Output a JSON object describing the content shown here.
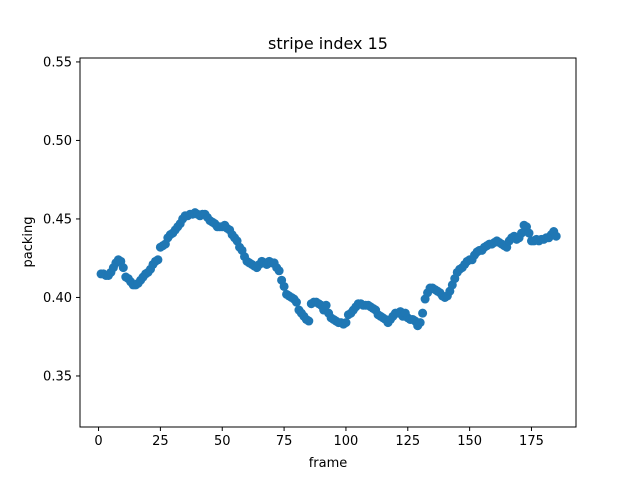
{
  "chart_data": {
    "type": "scatter",
    "title": "stripe index 15",
    "xlabel": "frame",
    "ylabel": "packing",
    "xlim": [
      -7.5,
      193
    ],
    "ylim": [
      0.3175,
      0.5525
    ],
    "xticks": [
      0,
      25,
      50,
      75,
      100,
      125,
      150,
      175
    ],
    "xtick_labels": [
      "0",
      "25",
      "50",
      "75",
      "100",
      "125",
      "150",
      "175"
    ],
    "yticks": [
      0.35,
      0.4,
      0.45,
      0.5,
      0.55
    ],
    "ytick_labels": [
      "0.35",
      "0.40",
      "0.45",
      "0.50",
      "0.55"
    ],
    "grid": false,
    "marker_color": "#1f77b4",
    "series": [
      {
        "x": [
          1,
          2,
          3,
          4,
          5,
          6,
          7,
          8,
          9,
          10,
          11,
          12,
          13,
          14,
          15,
          16,
          17,
          18,
          19,
          20,
          21,
          22,
          23,
          24,
          25,
          26,
          27,
          28,
          29,
          30,
          31,
          32,
          33,
          34,
          35,
          36,
          37,
          38,
          39,
          40,
          41,
          42,
          43,
          44,
          45,
          46,
          47,
          48,
          49,
          50,
          51,
          52,
          53,
          54,
          55,
          56,
          57,
          58,
          59,
          60,
          61,
          62,
          63,
          64,
          65,
          66,
          67,
          68,
          69,
          70,
          71,
          72,
          73,
          74,
          75,
          76,
          77,
          78,
          79,
          80,
          81,
          82,
          83,
          84,
          85,
          86,
          87,
          88,
          89,
          90,
          91,
          92,
          93,
          94,
          95,
          96,
          97,
          98,
          99,
          100,
          101,
          102,
          103,
          104,
          105,
          106,
          107,
          108,
          109,
          110,
          111,
          112,
          113,
          114,
          115,
          116,
          117,
          118,
          119,
          120,
          121,
          122,
          123,
          124,
          125,
          126,
          127,
          128,
          129,
          130,
          131,
          132,
          133,
          134,
          135,
          136,
          137,
          138,
          139,
          140,
          141,
          142,
          143,
          144,
          145,
          146,
          147,
          148,
          149,
          150,
          151,
          152,
          153,
          154,
          155,
          156,
          157,
          158,
          159,
          160,
          161,
          162,
          163,
          164,
          165,
          166,
          167,
          168,
          169,
          170,
          171,
          172,
          173,
          174,
          175,
          176,
          177,
          178,
          179,
          180,
          181,
          182,
          183,
          184,
          185
        ],
        "y": [
          0.415,
          0.415,
          0.414,
          0.414,
          0.416,
          0.419,
          0.422,
          0.424,
          0.423,
          0.419,
          0.413,
          0.412,
          0.41,
          0.408,
          0.408,
          0.409,
          0.411,
          0.413,
          0.415,
          0.416,
          0.418,
          0.421,
          0.423,
          0.424,
          0.432,
          0.433,
          0.434,
          0.438,
          0.44,
          0.441,
          0.443,
          0.445,
          0.447,
          0.45,
          0.452,
          0.452,
          0.453,
          0.453,
          0.454,
          0.453,
          0.452,
          0.453,
          0.453,
          0.451,
          0.449,
          0.448,
          0.447,
          0.445,
          0.445,
          0.445,
          0.446,
          0.444,
          0.443,
          0.44,
          0.438,
          0.436,
          0.432,
          0.43,
          0.426,
          0.423,
          0.422,
          0.421,
          0.42,
          0.419,
          0.421,
          0.423,
          0.422,
          0.421,
          0.423,
          0.422,
          0.422,
          0.419,
          0.417,
          0.411,
          0.407,
          0.402,
          0.401,
          0.4,
          0.399,
          0.397,
          0.392,
          0.39,
          0.388,
          0.386,
          0.385,
          0.396,
          0.397,
          0.397,
          0.396,
          0.395,
          0.392,
          0.395,
          0.39,
          0.387,
          0.386,
          0.385,
          0.384,
          0.384,
          0.383,
          0.384,
          0.389,
          0.39,
          0.392,
          0.394,
          0.396,
          0.396,
          0.395,
          0.395,
          0.395,
          0.394,
          0.393,
          0.392,
          0.389,
          0.388,
          0.387,
          0.386,
          0.384,
          0.386,
          0.388,
          0.39,
          0.39,
          0.391,
          0.388,
          0.39,
          0.387,
          0.386,
          0.386,
          0.385,
          0.382,
          0.384,
          0.39,
          0.399,
          0.403,
          0.406,
          0.406,
          0.405,
          0.404,
          0.403,
          0.401,
          0.4,
          0.401,
          0.404,
          0.408,
          0.412,
          0.416,
          0.418,
          0.419,
          0.421,
          0.423,
          0.424,
          0.424,
          0.427,
          0.429,
          0.43,
          0.43,
          0.432,
          0.433,
          0.434,
          0.434,
          0.435,
          0.436,
          0.435,
          0.434,
          0.433,
          0.432,
          0.436,
          0.438,
          0.439,
          0.437,
          0.438,
          0.441,
          0.446,
          0.445,
          0.441,
          0.436,
          0.436,
          0.437,
          0.436,
          0.437,
          0.437,
          0.438,
          0.438,
          0.44,
          0.442,
          0.439
        ]
      }
    ]
  }
}
